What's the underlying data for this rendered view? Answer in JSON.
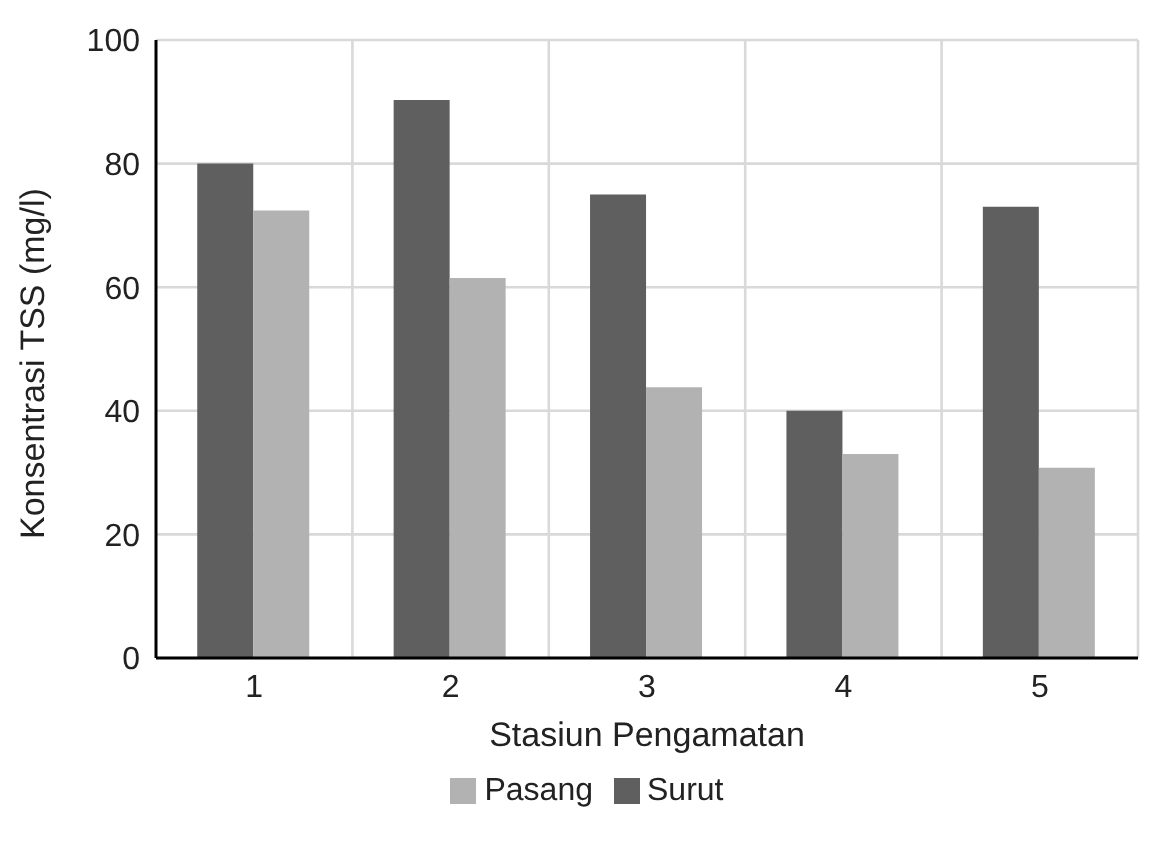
{
  "chart_data": {
    "type": "bar",
    "xlabel": "Stasiun Pengamatan",
    "ylabel": "Konsentrasi TSS (mg/l)",
    "categories": [
      "1",
      "2",
      "3",
      "4",
      "5"
    ],
    "series": [
      {
        "name": "Surut",
        "color": "#5f5f5f",
        "values": [
          80,
          90.3,
          75,
          40,
          73
        ]
      },
      {
        "name": "Pasang",
        "color": "#b2b2b2",
        "values": [
          72.4,
          61.5,
          43.8,
          33,
          30.8
        ]
      }
    ],
    "ylim": [
      0,
      100
    ],
    "yticks": [
      0,
      20,
      40,
      60,
      80,
      100
    ],
    "grid": true,
    "legend": "bottom"
  }
}
